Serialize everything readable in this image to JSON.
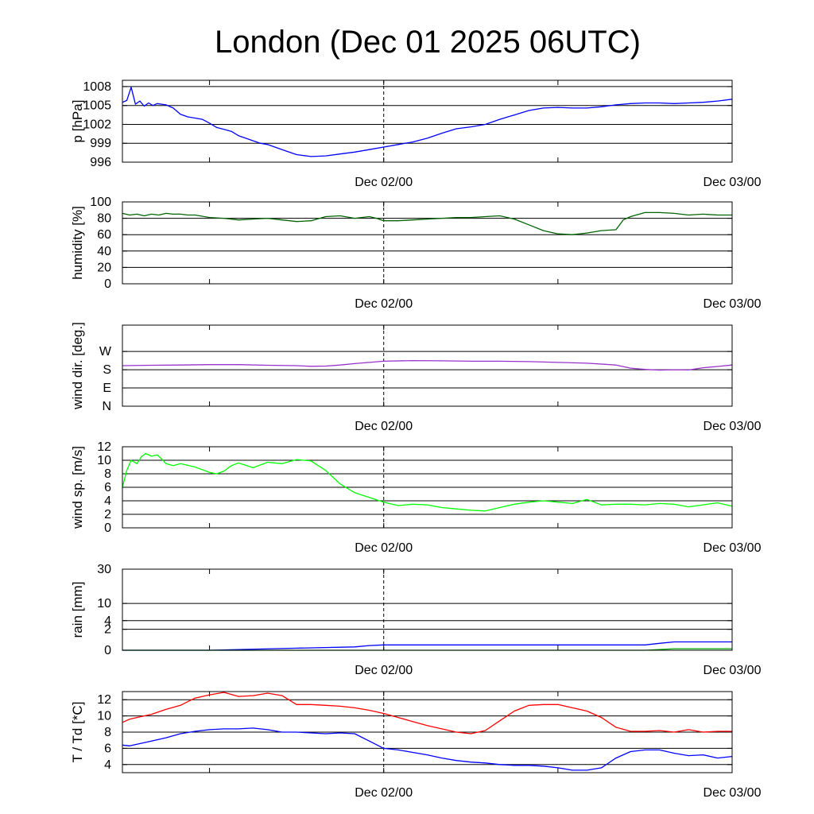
{
  "chart_data": {
    "title": "London (Dec 01 2025 06UTC)",
    "x_labels": [
      "Dec 02/00",
      "Dec 03/00"
    ],
    "x_range_hours": [
      0,
      42
    ],
    "marker_hour": 18,
    "panels": [
      {
        "id": "pressure",
        "type": "line",
        "ylabel": "p [hPa]",
        "ylim": [
          996,
          1009
        ],
        "yticks": [
          996,
          999,
          1002,
          1005,
          1008
        ],
        "ytick_labels": [
          "996",
          "999",
          "1002",
          "1005",
          "1008"
        ],
        "gridlines": [
          999,
          1002,
          1005,
          1008
        ],
        "series": [
          {
            "color": "#0000ff",
            "x": [
              0,
              0.3,
              0.6,
              0.9,
              1.2,
              1.5,
              1.8,
              2.1,
              2.4,
              2.7,
              3,
              3.5,
              4,
              4.5,
              5,
              5.5,
              6,
              6.5,
              7,
              7.5,
              8,
              8.5,
              9,
              9.5,
              10,
              11,
              12,
              13,
              14,
              15,
              16,
              17,
              18,
              19,
              20,
              21,
              22,
              23,
              24,
              25,
              26,
              27,
              28,
              29,
              30,
              31,
              32,
              33,
              34,
              35,
              36,
              37,
              38,
              39,
              40,
              41,
              42
            ],
            "y": [
              1005.5,
              1005.8,
              1007.9,
              1005.2,
              1005.7,
              1004.9,
              1005.4,
              1005.0,
              1005.3,
              1005.2,
              1005.1,
              1004.6,
              1003.6,
              1003.2,
              1003.0,
              1002.8,
              1002.2,
              1001.5,
              1001.2,
              1000.9,
              1000.2,
              999.8,
              999.4,
              999.0,
              998.8,
              998.0,
              997.2,
              996.9,
              997.0,
              997.3,
              997.6,
              998.0,
              998.4,
              998.8,
              999.2,
              999.8,
              1000.6,
              1001.3,
              1001.6,
              1002.0,
              1002.8,
              1003.5,
              1004.2,
              1004.6,
              1004.7,
              1004.6,
              1004.6,
              1004.8,
              1005.1,
              1005.3,
              1005.4,
              1005.4,
              1005.3,
              1005.4,
              1005.5,
              1005.7,
              1006.0
            ]
          }
        ]
      },
      {
        "id": "humidity",
        "type": "line",
        "ylabel": "humidity [%]",
        "ylim": [
          0,
          100
        ],
        "yticks": [
          0,
          20,
          40,
          60,
          80,
          100
        ],
        "ytick_labels": [
          "0",
          "20",
          "40",
          "60",
          "80",
          "100"
        ],
        "gridlines": [
          20,
          40,
          60,
          80
        ],
        "series": [
          {
            "color": "#006400",
            "x": [
              0,
              0.5,
              1,
              1.5,
              2,
              2.5,
              3,
              3.5,
              4,
              4.5,
              5,
              6,
              7,
              8,
              9,
              10,
              11,
              12,
              13,
              14,
              15,
              16,
              17,
              17.5,
              18,
              19,
              20,
              21,
              22,
              23,
              24,
              25,
              26,
              27,
              28,
              29,
              30,
              31,
              32,
              33,
              34,
              34.5,
              35,
              36,
              37,
              38,
              39,
              40,
              41,
              42
            ],
            "y": [
              86,
              84,
              85,
              83,
              85,
              84,
              86,
              85,
              85,
              84,
              84,
              81,
              80,
              78,
              79,
              80,
              78,
              76,
              77,
              82,
              83,
              80,
              82,
              80,
              77,
              77,
              78,
              79,
              80,
              81,
              81,
              82,
              83,
              79,
              72,
              65,
              61,
              60,
              62,
              65,
              66,
              78,
              82,
              87,
              87,
              86,
              84,
              85,
              84,
              84
            ]
          }
        ]
      },
      {
        "id": "wind_direction",
        "type": "line",
        "ylabel": "wind dir. [deg.]",
        "ylim": [
          0,
          400
        ],
        "yticks": [
          0,
          90,
          180,
          270
        ],
        "ytick_labels": [
          "N",
          "E",
          "S",
          "W"
        ],
        "gridlines": [
          90,
          180,
          270
        ],
        "series": [
          {
            "color": "#9932cc",
            "x": [
              0,
              2,
              4,
              6,
              8,
              10,
              12,
              13,
              14,
              15,
              16,
              18,
              20,
              22,
              24,
              26,
              28,
              30,
              32,
              34,
              35,
              36,
              37,
              38,
              39,
              40,
              41,
              42
            ],
            "y": [
              200,
              202,
              203,
              205,
              205,
              202,
              200,
              197,
              198,
              203,
              210,
              222,
              225,
              224,
              222,
              222,
              220,
              216,
              212,
              203,
              188,
              182,
              178,
              180,
              179,
              190,
              196,
              203
            ]
          }
        ]
      },
      {
        "id": "wind_speed",
        "type": "line",
        "ylabel": "wind sp. [m/s]",
        "ylim": [
          0,
          12
        ],
        "yticks": [
          0,
          2,
          4,
          6,
          8,
          10,
          12
        ],
        "ytick_labels": [
          "0",
          "2",
          "4",
          "6",
          "8",
          "10",
          "12"
        ],
        "gridlines": [
          2,
          4,
          6,
          8,
          10
        ],
        "series": [
          {
            "color": "#00ff00",
            "x": [
              0,
              0.3,
              0.6,
              1,
              1.3,
              1.6,
              2,
              2.4,
              2.8,
              3,
              3.5,
              4,
              5,
              6,
              6.5,
              7,
              7.5,
              8,
              9,
              10,
              11,
              12,
              13,
              14,
              15,
              16,
              17,
              18,
              19,
              20,
              21,
              22,
              23,
              24,
              25,
              26,
              27,
              28,
              29,
              30,
              31,
              32,
              33,
              34,
              35,
              36,
              37,
              38,
              39,
              40,
              41,
              42
            ],
            "y": [
              6.0,
              8.5,
              10.0,
              9.5,
              10.5,
              11.0,
              10.6,
              10.8,
              10.0,
              9.5,
              9.2,
              9.5,
              9.0,
              8.2,
              8.0,
              8.4,
              9.2,
              9.6,
              8.9,
              9.7,
              9.5,
              10.1,
              9.9,
              8.5,
              6.5,
              5.2,
              4.5,
              3.8,
              3.3,
              3.5,
              3.4,
              3.0,
              2.8,
              2.6,
              2.5,
              3.0,
              3.5,
              3.8,
              4.0,
              3.8,
              3.6,
              4.2,
              3.4,
              3.5,
              3.5,
              3.4,
              3.6,
              3.5,
              3.1,
              3.4,
              3.7,
              3.2
            ]
          }
        ]
      },
      {
        "id": "rain",
        "type": "line",
        "ylabel": "rain [mm]",
        "ylim": [
          0,
          30
        ],
        "scale": "sqrt",
        "yticks": [
          0,
          2,
          4,
          10,
          30
        ],
        "ytick_labels": [
          "0",
          "2",
          "4",
          "10",
          "30"
        ],
        "gridlines": [
          2,
          4,
          10,
          30
        ],
        "series": [
          {
            "color": "#0000ff",
            "x": [
              0,
              6,
              12,
              16,
              17,
              18,
              24,
              30,
              36,
              37,
              38,
              40,
              42
            ],
            "y": [
              0,
              0,
              0.02,
              0.05,
              0.1,
              0.13,
              0.13,
              0.13,
              0.13,
              0.22,
              0.32,
              0.32,
              0.32
            ]
          },
          {
            "color": "#00aa00",
            "x": [
              0,
              12,
              24,
              36,
              38,
              42
            ],
            "y": [
              0,
              0,
              0,
              0,
              0.01,
              0.01
            ]
          }
        ]
      },
      {
        "id": "temperature",
        "type": "line",
        "ylabel": "T / Td [*C]",
        "ylim": [
          3,
          13
        ],
        "yticks": [
          4,
          6,
          8,
          10,
          12
        ],
        "ytick_labels": [
          "4",
          "6",
          "8",
          "10",
          "12"
        ],
        "gridlines": [
          4,
          6,
          8,
          10,
          12
        ],
        "series": [
          {
            "color": "#ff0000",
            "x": [
              0,
              0.5,
              1,
              2,
              3,
              4,
              5,
              6,
              7,
              8,
              9,
              10,
              11,
              12,
              13,
              14,
              15,
              16,
              17,
              18,
              19,
              20,
              21,
              22,
              23,
              24,
              25,
              26,
              27,
              28,
              29,
              30,
              31,
              32,
              33,
              34,
              35,
              36,
              37,
              38,
              39,
              40,
              41,
              42
            ],
            "y": [
              9.2,
              9.6,
              9.8,
              10.2,
              10.8,
              11.3,
              12.2,
              12.6,
              12.9,
              12.4,
              12.5,
              12.8,
              12.5,
              11.4,
              11.4,
              11.3,
              11.2,
              11.0,
              10.7,
              10.3,
              9.8,
              9.3,
              8.8,
              8.4,
              8.0,
              7.8,
              8.2,
              9.4,
              10.6,
              11.3,
              11.4,
              11.4,
              11.0,
              10.6,
              9.8,
              8.6,
              8.1,
              8.1,
              8.2,
              8.0,
              8.3,
              8.0,
              8.1,
              8.1
            ]
          },
          {
            "color": "#0000ff",
            "x": [
              0,
              0.5,
              1,
              2,
              3,
              4,
              5,
              6,
              7,
              8,
              9,
              10,
              11,
              12,
              13,
              14,
              15,
              16,
              17,
              18,
              19,
              20,
              21,
              22,
              23,
              24,
              25,
              26,
              27,
              28,
              29,
              30,
              31,
              32,
              33,
              34,
              35,
              36,
              37,
              38,
              39,
              40,
              41,
              42
            ],
            "y": [
              6.4,
              6.3,
              6.5,
              6.9,
              7.3,
              7.8,
              8.1,
              8.3,
              8.4,
              8.4,
              8.5,
              8.3,
              8.0,
              8.0,
              7.9,
              7.8,
              7.9,
              7.8,
              6.9,
              6.0,
              5.8,
              5.5,
              5.2,
              4.8,
              4.5,
              4.3,
              4.2,
              4.0,
              3.9,
              3.9,
              3.8,
              3.6,
              3.3,
              3.3,
              3.6,
              4.8,
              5.6,
              5.8,
              5.8,
              5.4,
              5.1,
              5.2,
              4.8,
              5.0
            ]
          }
        ]
      }
    ]
  }
}
